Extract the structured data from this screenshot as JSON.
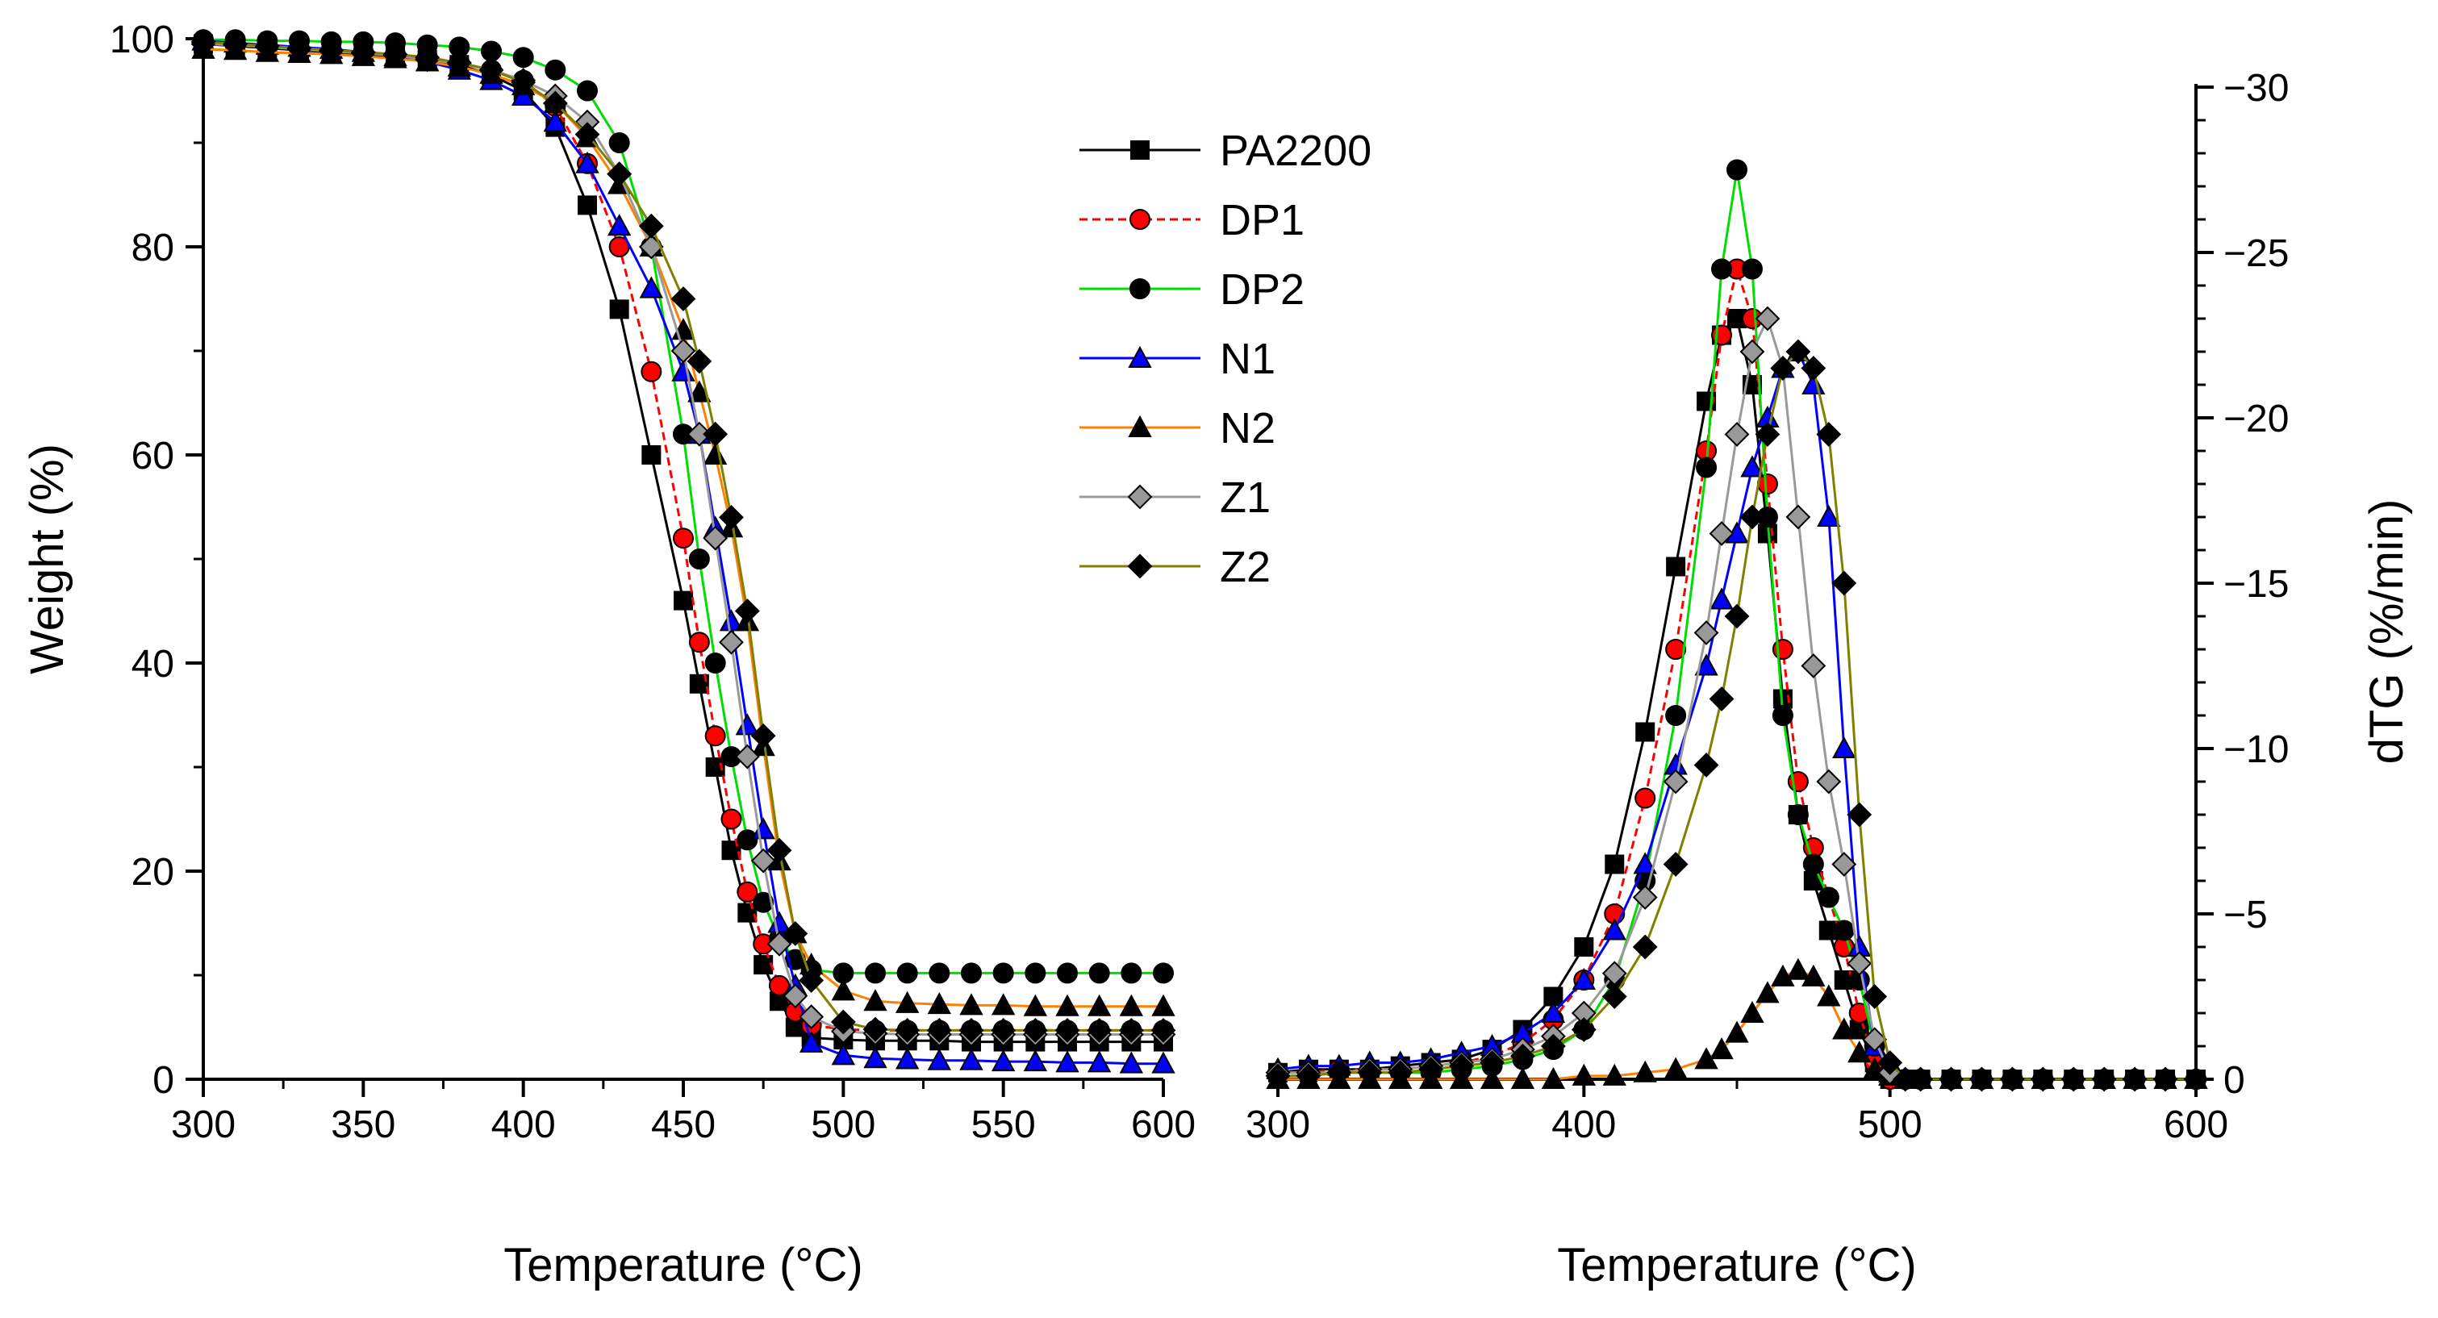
{
  "chart_data": [
    {
      "type": "line",
      "panel": "left",
      "title": "",
      "xlabel": "Temperature (°C)",
      "ylabel": "Weight (%)",
      "xlim": [
        300,
        600
      ],
      "ylim": [
        0,
        100
      ],
      "xticks": [
        "300",
        "350",
        "400",
        "450",
        "500",
        "550",
        "600"
      ],
      "yticks": [
        "0",
        "20",
        "40",
        "60",
        "80",
        "100"
      ],
      "x": [
        300,
        310,
        320,
        330,
        340,
        350,
        360,
        370,
        380,
        390,
        400,
        410,
        420,
        430,
        440,
        450,
        455,
        460,
        465,
        470,
        475,
        480,
        485,
        490,
        500,
        510,
        520,
        530,
        540,
        550,
        560,
        570,
        580,
        590,
        600
      ],
      "series": [
        {
          "name": "PA2200",
          "values": [
            99.5,
            99.3,
            99.1,
            98.9,
            98.7,
            98.5,
            98.3,
            98.0,
            97.5,
            96.5,
            95.0,
            91.5,
            84.0,
            74.0,
            60.0,
            46.0,
            38.0,
            30.0,
            22.0,
            16.0,
            11.0,
            7.5,
            5.0,
            4.0,
            3.8,
            3.7,
            3.7,
            3.7,
            3.6,
            3.6,
            3.6,
            3.6,
            3.6,
            3.6,
            3.6
          ]
        },
        {
          "name": "DP1",
          "values": [
            99.6,
            99.4,
            99.2,
            99.0,
            98.9,
            98.7,
            98.5,
            98.2,
            97.7,
            97.0,
            96.0,
            93.5,
            88.0,
            80.0,
            68.0,
            52.0,
            42.0,
            33.0,
            25.0,
            18.0,
            13.0,
            9.0,
            6.5,
            5.2,
            4.8,
            4.7,
            4.7,
            4.7,
            4.7,
            4.7,
            4.7,
            4.7,
            4.7,
            4.7,
            4.7
          ]
        },
        {
          "name": "DP2",
          "values": [
            99.9,
            99.9,
            99.8,
            99.8,
            99.7,
            99.7,
            99.6,
            99.4,
            99.2,
            98.8,
            98.2,
            97.0,
            95.0,
            90.0,
            80.0,
            62.0,
            50.0,
            40.0,
            31.0,
            23.0,
            17.0,
            13.5,
            11.5,
            10.5,
            10.2,
            10.2,
            10.2,
            10.2,
            10.2,
            10.2,
            10.2,
            10.2,
            10.2,
            10.2,
            10.2
          ]
        },
        {
          "name": "N1",
          "values": [
            99.8,
            99.6,
            99.4,
            99.2,
            99.0,
            98.7,
            98.3,
            97.8,
            97.0,
            96.0,
            94.5,
            92.0,
            88.0,
            82.0,
            76.0,
            68.0,
            62.0,
            53.0,
            44.0,
            34.0,
            24.0,
            15.0,
            9.0,
            3.5,
            2.3,
            2.0,
            1.9,
            1.8,
            1.8,
            1.7,
            1.7,
            1.6,
            1.6,
            1.5,
            1.5
          ]
        },
        {
          "name": "N2",
          "values": [
            99.0,
            98.9,
            98.7,
            98.6,
            98.5,
            98.3,
            98.1,
            97.8,
            97.3,
            96.6,
            95.5,
            93.8,
            90.5,
            86.0,
            80.0,
            72.0,
            66.0,
            60.0,
            53.0,
            44.0,
            32.0,
            21.0,
            14.0,
            11.0,
            8.5,
            7.5,
            7.3,
            7.2,
            7.1,
            7.1,
            7.0,
            7.0,
            7.0,
            7.0,
            7.0
          ]
        },
        {
          "name": "Z1",
          "values": [
            99.5,
            99.4,
            99.2,
            99.0,
            98.8,
            98.6,
            98.4,
            98.0,
            97.6,
            97.0,
            96.0,
            94.5,
            92.0,
            87.0,
            80.0,
            70.0,
            62.0,
            52.0,
            42.0,
            31.0,
            21.0,
            13.0,
            8.0,
            6.0,
            4.6,
            4.4,
            4.3,
            4.3,
            4.3,
            4.3,
            4.3,
            4.3,
            4.3,
            4.3,
            4.3
          ]
        },
        {
          "name": "Z2",
          "values": [
            99.7,
            99.5,
            99.3,
            99.1,
            98.9,
            98.7,
            98.5,
            98.2,
            97.7,
            97.0,
            95.8,
            93.8,
            90.8,
            87.0,
            82.0,
            75.0,
            69.0,
            62.0,
            54.0,
            45.0,
            33.0,
            22.0,
            14.0,
            9.5,
            5.5,
            4.8,
            4.7,
            4.7,
            4.7,
            4.7,
            4.7,
            4.7,
            4.7,
            4.7,
            4.7
          ]
        }
      ]
    },
    {
      "type": "line",
      "panel": "right",
      "title": "",
      "xlabel": "Temperature (°C)",
      "ylabel": "dTG (%/min)",
      "xlim": [
        300,
        600
      ],
      "ylim": [
        0,
        -30
      ],
      "xticks": [
        "300",
        "400",
        "500",
        "600"
      ],
      "yticks": [
        "0",
        "−5",
        "−10",
        "−15",
        "−20",
        "−25",
        "−30"
      ],
      "x": [
        300,
        310,
        320,
        330,
        340,
        350,
        360,
        370,
        380,
        390,
        400,
        410,
        420,
        430,
        440,
        445,
        450,
        455,
        460,
        465,
        470,
        475,
        480,
        485,
        490,
        495,
        500,
        505,
        510,
        520,
        530,
        540,
        550,
        560,
        570,
        580,
        590,
        600
      ],
      "series": [
        {
          "name": "PA2200",
          "values": [
            -0.2,
            -0.3,
            -0.3,
            -0.3,
            -0.4,
            -0.5,
            -0.6,
            -0.9,
            -1.5,
            -2.5,
            -4.0,
            -6.5,
            -10.5,
            -15.5,
            -20.5,
            -22.5,
            -23.0,
            -21.0,
            -16.5,
            -11.5,
            -8.0,
            -6.0,
            -4.5,
            -3.0,
            -1.5,
            -0.5,
            0,
            0,
            0,
            0,
            0,
            0,
            0,
            0,
            0,
            0,
            0,
            0
          ]
        },
        {
          "name": "DP1",
          "values": [
            -0.2,
            -0.2,
            -0.3,
            -0.3,
            -0.3,
            -0.4,
            -0.5,
            -0.7,
            -1.1,
            -1.8,
            -3.0,
            -5.0,
            -8.5,
            -13.0,
            -19.0,
            -22.5,
            -24.5,
            -23.0,
            -18.0,
            -13.0,
            -9.0,
            -7.0,
            -5.5,
            -4.0,
            -2.0,
            -0.5,
            0,
            0,
            0,
            0,
            0,
            0,
            0,
            0,
            0,
            0,
            0,
            0
          ]
        },
        {
          "name": "DP2",
          "values": [
            -0.1,
            -0.1,
            -0.2,
            -0.2,
            -0.2,
            -0.2,
            -0.3,
            -0.4,
            -0.6,
            -0.9,
            -1.5,
            -3.0,
            -6.0,
            -11.0,
            -18.5,
            -24.5,
            -27.5,
            -24.5,
            -17.0,
            -11.0,
            -8.0,
            -6.5,
            -5.5,
            -4.5,
            -3.0,
            -1.0,
            -0.2,
            0,
            0,
            0,
            0,
            0,
            0,
            0,
            0,
            0,
            0,
            0
          ]
        },
        {
          "name": "N1",
          "values": [
            -0.3,
            -0.4,
            -0.4,
            -0.5,
            -0.5,
            -0.6,
            -0.8,
            -1.0,
            -1.4,
            -2.0,
            -3.0,
            -4.5,
            -6.5,
            -9.5,
            -12.5,
            -14.5,
            -16.5,
            -18.5,
            -20.0,
            -21.5,
            -22.0,
            -21.0,
            -17.0,
            -10.0,
            -4.0,
            -1.0,
            -0.2,
            0,
            0,
            0,
            0,
            0,
            0,
            0,
            0,
            0,
            0,
            0
          ]
        },
        {
          "name": "N2",
          "values": [
            0,
            0,
            0,
            0,
            0,
            0,
            0,
            0,
            0,
            0,
            -0.1,
            -0.1,
            -0.2,
            -0.3,
            -0.6,
            -0.9,
            -1.4,
            -2.0,
            -2.6,
            -3.1,
            -3.3,
            -3.1,
            -2.5,
            -1.5,
            -0.8,
            -0.3,
            -0.1,
            0,
            0,
            0,
            0,
            0,
            0,
            0,
            0,
            0,
            0,
            0
          ]
        },
        {
          "name": "Z1",
          "values": [
            -0.2,
            -0.2,
            -0.2,
            -0.3,
            -0.3,
            -0.4,
            -0.5,
            -0.6,
            -0.9,
            -1.3,
            -2.0,
            -3.2,
            -5.5,
            -9.0,
            -13.5,
            -16.5,
            -19.5,
            -22.0,
            -23.0,
            -21.5,
            -17.0,
            -12.5,
            -9.0,
            -6.5,
            -3.5,
            -1.2,
            -0.2,
            0,
            0,
            0,
            0,
            0,
            0,
            0,
            0,
            0,
            0,
            0
          ]
        },
        {
          "name": "Z2",
          "values": [
            -0.1,
            -0.1,
            -0.2,
            -0.2,
            -0.2,
            -0.3,
            -0.4,
            -0.5,
            -0.7,
            -1.0,
            -1.5,
            -2.5,
            -4.0,
            -6.5,
            -9.5,
            -11.5,
            -14.0,
            -17.0,
            -19.5,
            -21.5,
            -22.0,
            -21.5,
            -19.5,
            -15.0,
            -8.0,
            -2.5,
            -0.5,
            0,
            0,
            0,
            0,
            0,
            0,
            0,
            0,
            0,
            0,
            0
          ]
        }
      ]
    }
  ],
  "legend": {
    "placement": "center",
    "items": [
      {
        "name": "PA2200",
        "color": "#000000",
        "fill": "#000000",
        "marker": "square",
        "dash": false
      },
      {
        "name": "DP1",
        "color": "#ff0000",
        "fill": "#ff0000",
        "marker": "circle",
        "dash": true
      },
      {
        "name": "DP2",
        "color": "#00dd00",
        "fill": "#000000",
        "marker": "circle",
        "dash": false
      },
      {
        "name": "N1",
        "color": "#0000ff",
        "fill": "#0000ff",
        "marker": "triangle",
        "dash": false
      },
      {
        "name": "N2",
        "color": "#ff8000",
        "fill": "#000000",
        "marker": "triangle",
        "dash": false
      },
      {
        "name": "Z1",
        "color": "#999999",
        "fill": "#999999",
        "marker": "diamond",
        "dash": false
      },
      {
        "name": "Z2",
        "color": "#808000",
        "fill": "#000000",
        "marker": "diamond",
        "dash": false
      }
    ]
  }
}
